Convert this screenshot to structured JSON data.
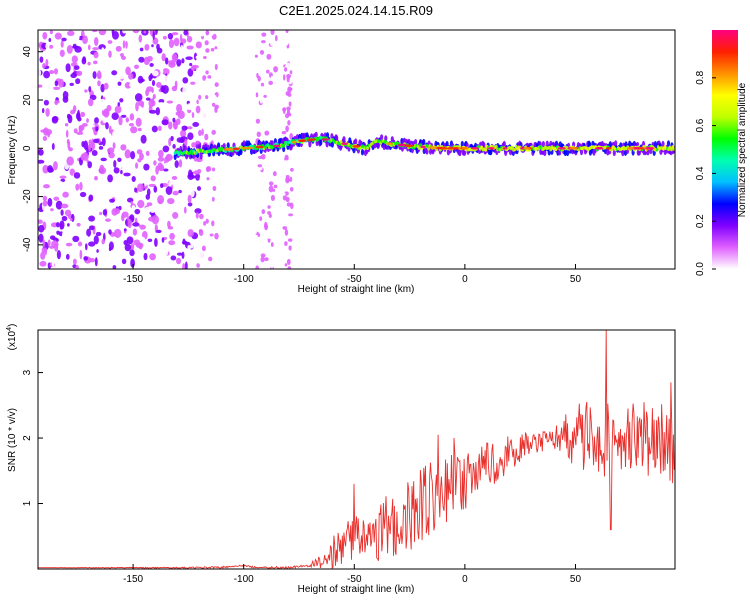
{
  "figure": {
    "title": "C2E1.2025.024.14.15.R09"
  },
  "chart_data": [
    {
      "type": "heatmap",
      "xlabel": "Height of straight line (km)",
      "ylabel": "Frequency (Hz)",
      "xlim": [
        -193,
        95
      ],
      "ylim": [
        -50,
        49
      ],
      "xticks": [
        "-150",
        "-100",
        "-50",
        "0",
        "50"
      ],
      "xtick_values": [
        -150,
        -100,
        -50,
        0,
        50
      ],
      "yticks": [
        "40",
        "20",
        "0",
        "-20",
        "-40"
      ],
      "ytick_values": [
        40,
        20,
        0,
        -20,
        -40
      ],
      "colorbar": {
        "label": "Normalized spectral amplitude",
        "range": [
          0,
          1
        ],
        "ticks": [
          "0.0",
          "0.2",
          "0.4",
          "0.6",
          "0.8"
        ],
        "tick_values": [
          0.0,
          0.2,
          0.4,
          0.6,
          0.8
        ],
        "colormap": [
          "#ffffff",
          "#e060ff",
          "#8000ff",
          "#0000ff",
          "#00c0ff",
          "#00ffb0",
          "#00ff00",
          "#c0ff00",
          "#ffff00",
          "#ff9000",
          "#ff2000",
          "#ff0080"
        ]
      },
      "signal_band": {
        "center_hz": [
          [
            -130,
            -2
          ],
          [
            -115,
            -1
          ],
          [
            -100,
            0
          ],
          [
            -85,
            1
          ],
          [
            -75,
            3
          ],
          [
            -65,
            4
          ],
          [
            -55,
            2
          ],
          [
            -45,
            0
          ],
          [
            -40,
            3
          ],
          [
            -35,
            2
          ],
          [
            -25,
            1
          ],
          [
            -10,
            0
          ],
          [
            0,
            0
          ],
          [
            20,
            0
          ],
          [
            50,
            0
          ],
          [
            95,
            0
          ]
        ],
        "peak_amplitude": 0.95
      },
      "noise_region_x": [
        -193,
        -130
      ]
    },
    {
      "type": "line",
      "xlabel": "Height of straight line (km)",
      "ylabel": "SNR (10 * v/v)",
      "yscale_label": "(x10",
      "yscale_exponent": "4",
      "xlim": [
        -193,
        95
      ],
      "ylim": [
        0,
        3.65
      ],
      "xticks": [
        "-150",
        "-100",
        "-50",
        "0",
        "50"
      ],
      "xtick_values": [
        -150,
        -100,
        -50,
        0,
        50
      ],
      "yticks": [
        "1",
        "2",
        "3"
      ],
      "ytick_values": [
        1,
        2,
        3
      ],
      "color": "#e8302c",
      "trend": [
        [
          -193,
          0.02
        ],
        [
          -120,
          0.02
        ],
        [
          -105,
          0.03
        ],
        [
          -100,
          0.05
        ],
        [
          -95,
          0.03
        ],
        [
          -80,
          0.02
        ],
        [
          -70,
          0.05
        ],
        [
          -60,
          0.25
        ],
        [
          -50,
          0.5
        ],
        [
          -40,
          0.55
        ],
        [
          -30,
          0.75
        ],
        [
          -20,
          0.95
        ],
        [
          -10,
          1.2
        ],
        [
          0,
          1.35
        ],
        [
          10,
          1.55
        ],
        [
          20,
          1.75
        ],
        [
          30,
          1.9
        ],
        [
          40,
          2.0
        ],
        [
          50,
          2.05
        ],
        [
          60,
          2.0
        ],
        [
          70,
          1.95
        ],
        [
          80,
          2.0
        ],
        [
          95,
          1.9
        ]
      ],
      "noise_amplitude": [
        [
          -193,
          0.0
        ],
        [
          -70,
          0.02
        ],
        [
          -60,
          0.25
        ],
        [
          -40,
          0.45
        ],
        [
          -20,
          0.6
        ],
        [
          0,
          0.45
        ],
        [
          20,
          0.3
        ],
        [
          40,
          0.15
        ],
        [
          50,
          0.5
        ],
        [
          60,
          0.6
        ],
        [
          70,
          0.55
        ],
        [
          95,
          0.6
        ]
      ],
      "peaks": [
        [
          -50,
          1.3
        ],
        [
          -12,
          2.05
        ],
        [
          -5,
          2.0
        ],
        [
          55,
          2.55
        ],
        [
          64,
          3.65
        ],
        [
          66,
          0.6
        ],
        [
          93,
          2.85
        ]
      ]
    }
  ]
}
